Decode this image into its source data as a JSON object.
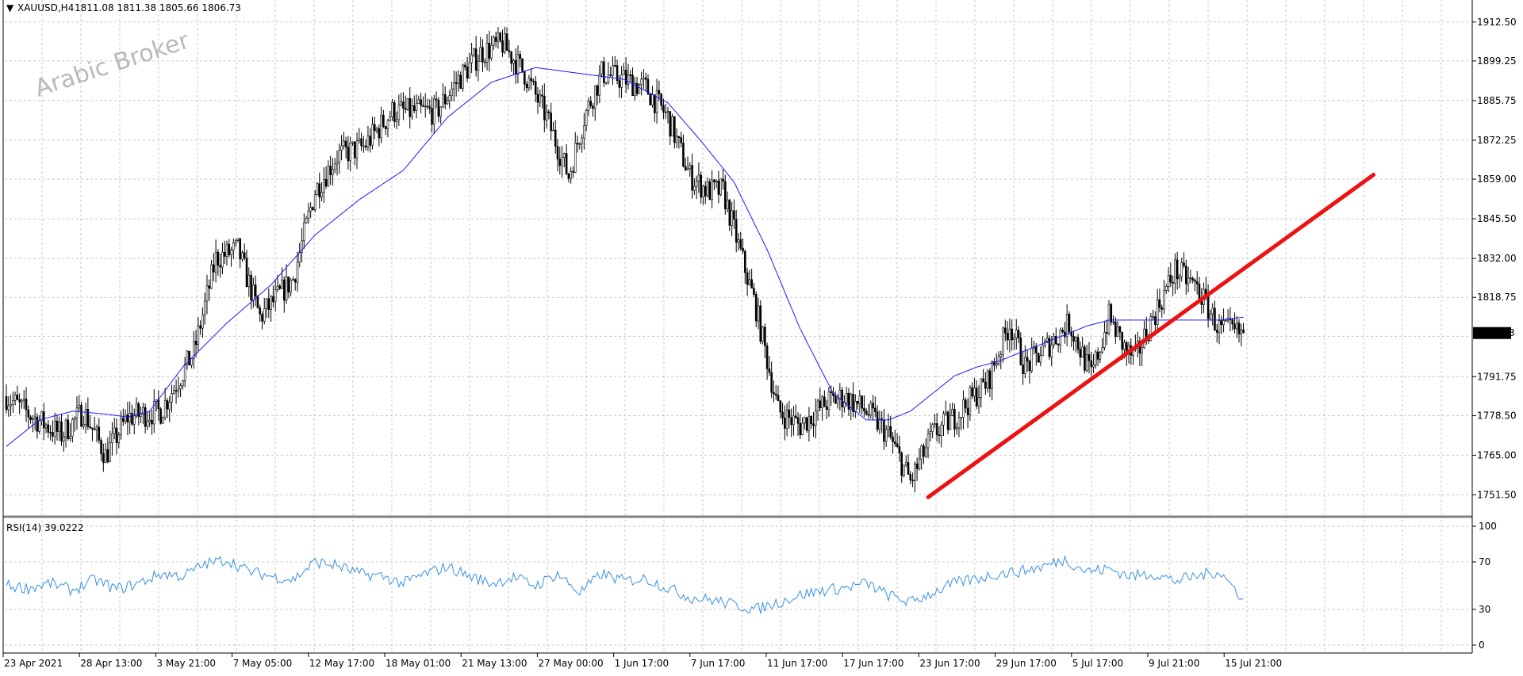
{
  "header": {
    "symbol": "XAUUSD,H4",
    "ohlc": "1811.08 1811.38 1805.66 1806.73",
    "menu_glyph": "▼"
  },
  "watermark": "Arabic Broker",
  "price_axis": {
    "ticks": [
      "1912.50",
      "1899.25",
      "1885.75",
      "1872.25",
      "1859.00",
      "1845.50",
      "1832.00",
      "1818.75",
      "1791.75",
      "1778.50",
      "1765.00",
      "1751.50"
    ],
    "tick_values": [
      1912.5,
      1899.25,
      1885.75,
      1872.25,
      1859.0,
      1845.5,
      1832.0,
      1818.75,
      1791.75,
      1778.5,
      1765.0,
      1751.5
    ],
    "current_price": "1806.73",
    "ylim": [
      1744.6,
      1920.0
    ]
  },
  "rsi": {
    "label": "RSI(14) 39.0222",
    "ticks": [
      "100",
      "70",
      "30",
      "0"
    ],
    "tick_values": [
      100,
      70,
      30,
      0
    ],
    "ylim": [
      0,
      100
    ]
  },
  "time_axis": {
    "labels": [
      "23 Apr 2021",
      "28 Apr 13:00",
      "3 May 21:00",
      "7 May 05:00",
      "12 May 17:00",
      "18 May 01:00",
      "21 May 13:00",
      "27 May 00:00",
      "1 Jun 17:00",
      "7 Jun 17:00",
      "11 Jun 17:00",
      "17 Jun 17:00",
      "23 Jun 17:00",
      "29 Jun 17:00",
      "5 Jul 17:00",
      "9 Jul 21:00",
      "15 Jul 21:00"
    ]
  },
  "colors": {
    "candle": "#000000",
    "moving_average": "#1a1aff",
    "trendline": "#ee1111",
    "rsi_line": "#3a8fe0",
    "grid": "#c8c8c8",
    "current_price_bg": "#000000",
    "current_price_fg": "#ffffff"
  },
  "chart_data": {
    "type": "line",
    "candle_style": "ohlc-candlestick",
    "price_anchors": {
      "x_index": [
        0,
        12,
        25,
        35,
        45,
        55,
        70,
        85,
        95,
        105,
        115,
        130,
        140,
        150,
        162,
        175,
        195,
        205,
        215,
        225,
        235,
        245,
        255,
        262,
        270,
        280,
        290,
        300,
        310,
        318,
        325,
        340,
        350,
        360,
        372,
        380,
        390,
        400,
        410,
        420,
        430,
        445,
        455,
        462,
        472,
        482,
        492,
        500,
        508,
        512,
        520,
        530,
        540,
        550,
        560,
        570,
        580,
        588,
        596,
        605,
        615,
        620
      ],
      "close": [
        1785,
        1778,
        1772,
        1780,
        1765,
        1778,
        1780,
        1800,
        1832,
        1835,
        1812,
        1825,
        1855,
        1867,
        1870,
        1882,
        1882,
        1893,
        1902,
        1905,
        1895,
        1880,
        1860,
        1880,
        1895,
        1893,
        1890,
        1880,
        1860,
        1855,
        1855,
        1815,
        1780,
        1775,
        1783,
        1785,
        1780,
        1772,
        1756,
        1772,
        1778,
        1790,
        1810,
        1795,
        1802,
        1810,
        1792,
        1812,
        1800,
        1798,
        1812,
        1828,
        1822,
        1808,
        1806,
        1806,
        1806,
        1806,
        1806,
        1806,
        1806,
        1806
      ]
    },
    "candle_count": 562,
    "last_close": 1806.73,
    "moving_average_anchors": {
      "x_index": [
        0,
        15,
        30,
        45,
        55,
        65,
        80,
        100,
        120,
        140,
        160,
        180,
        200,
        220,
        240,
        260,
        280,
        300,
        315,
        330,
        345,
        360,
        375,
        390,
        400,
        410,
        420,
        430,
        440,
        450,
        460,
        470,
        480,
        490,
        500,
        510,
        520,
        530,
        540,
        550,
        561
      ],
      "value": [
        1768,
        1777,
        1780,
        1779,
        1778,
        1780,
        1795,
        1810,
        1823,
        1840,
        1852,
        1862,
        1880,
        1892,
        1897,
        1895,
        1893,
        1885,
        1872,
        1858,
        1835,
        1808,
        1786,
        1777,
        1777,
        1780,
        1786,
        1792,
        1795,
        1797,
        1800,
        1803,
        1806,
        1809,
        1811,
        1811,
        1811,
        1811,
        1811,
        1811,
        1812
      ]
    },
    "trendline": {
      "start": [
        418,
        1750.7
      ],
      "end": [
        620,
        1860.5
      ]
    },
    "rsi_anchors": {
      "x_index": [
        0,
        10,
        20,
        30,
        40,
        50,
        60,
        70,
        80,
        90,
        100,
        110,
        120,
        130,
        140,
        150,
        160,
        170,
        180,
        190,
        200,
        210,
        220,
        230,
        240,
        250,
        260,
        270,
        280,
        290,
        300,
        310,
        320,
        330,
        340,
        350,
        360,
        370,
        380,
        390,
        400,
        410,
        420,
        430,
        440,
        450,
        460,
        470,
        480,
        490,
        500,
        510,
        520,
        530,
        540,
        550,
        561
      ],
      "value": [
        50,
        48,
        52,
        46,
        55,
        47,
        52,
        60,
        58,
        68,
        72,
        62,
        58,
        55,
        70,
        67,
        60,
        58,
        52,
        60,
        66,
        58,
        52,
        57,
        50,
        60,
        44,
        60,
        54,
        56,
        48,
        40,
        38,
        34,
        30,
        36,
        42,
        46,
        48,
        52,
        42,
        36,
        44,
        52,
        56,
        60,
        62,
        66,
        72,
        62,
        64,
        58,
        60,
        54,
        58,
        62,
        39
      ]
    },
    "title": "",
    "xlabel": "",
    "ylabel": "",
    "grid": true,
    "legend": "none"
  }
}
